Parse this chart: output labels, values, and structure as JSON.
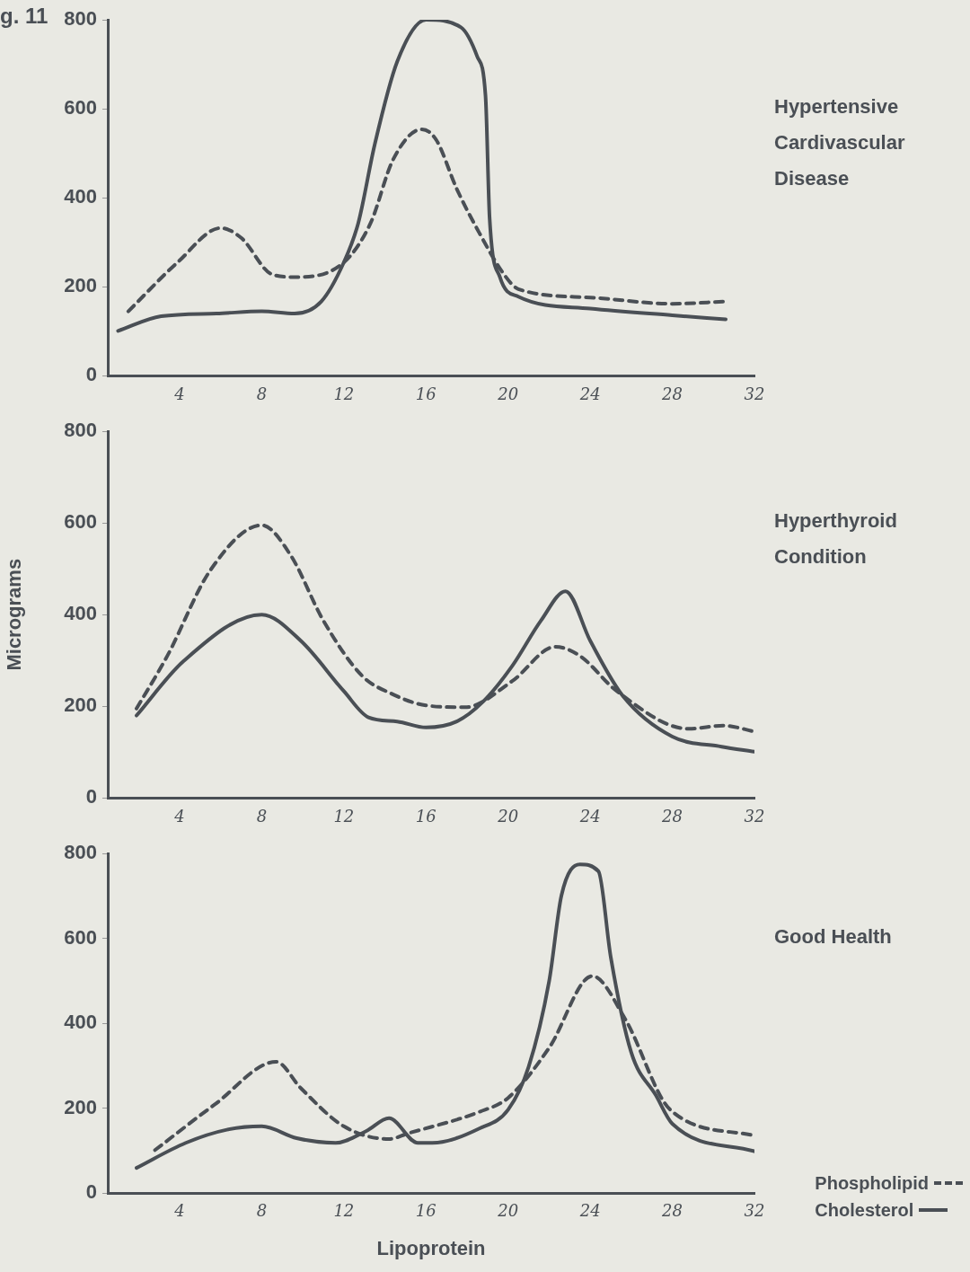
{
  "chart_data": [
    {
      "type": "line",
      "title": "g. 11",
      "annotations": [
        "Hypertensive Cardivascular Disease"
      ],
      "marker": "none",
      "xlim": [
        0.5,
        32
      ],
      "xticks": [
        4,
        8,
        12,
        16,
        20,
        24,
        28,
        32
      ],
      "ylim": [
        0,
        800
      ],
      "yticks": [
        0,
        200,
        400,
        600,
        800
      ],
      "series": [
        {
          "color": "#4a4f55",
          "line_style": "dashed",
          "x": [
            1.5,
            3.9,
            6.0,
            7.0,
            8.5,
            9.6,
            12,
            13.3,
            14.4,
            15.8,
            16.5,
            17.5,
            18.6,
            19.8,
            20.5,
            24,
            28,
            30.6
          ],
          "values": [
            145,
            255,
            332,
            310,
            228,
            222,
            255,
            343,
            486,
            554,
            530,
            420,
            321,
            228,
            195,
            176,
            162,
            167
          ]
        },
        {
          "color": "#4a4f55",
          "line_style": "solid",
          "x": [
            1.0,
            3.1,
            5.8,
            8,
            9.6,
            10.9,
            12,
            12.7,
            13.5,
            14.6,
            16,
            17.7,
            18.5,
            18.9,
            19.1,
            19.6,
            20.5,
            24,
            28,
            30.6
          ],
          "values": [
            101,
            134,
            140,
            145,
            140,
            167,
            255,
            343,
            519,
            706,
            800,
            783,
            717,
            629,
            354,
            222,
            178,
            151,
            136,
            127
          ]
        }
      ]
    },
    {
      "type": "line",
      "annotations": [
        "Hyperthyroid Condition"
      ],
      "ylabel": "Micrograms",
      "marker": "none",
      "xlim": [
        0.5,
        32
      ],
      "xticks": [
        4,
        8,
        12,
        16,
        20,
        24,
        28,
        32
      ],
      "ylim": [
        0,
        800
      ],
      "yticks": [
        0,
        200,
        400,
        600,
        800
      ],
      "series": [
        {
          "color": "#4a4f55",
          "line_style": "dashed",
          "x": [
            1.9,
            3.4,
            5.5,
            8,
            9.4,
            11.0,
            12.9,
            14.3,
            16,
            17.9,
            20.2,
            22.3,
            23.5,
            25.3,
            28.8,
            30.5,
            32
          ],
          "values": [
            195,
            310,
            497,
            595,
            530,
            387,
            266,
            228,
            202,
            198,
            255,
            330,
            310,
            233,
            151,
            158,
            145
          ]
        },
        {
          "color": "#4a4f55",
          "line_style": "solid",
          "x": [
            1.9,
            4.2,
            8,
            9.9,
            12,
            13.2,
            14.6,
            16,
            17.5,
            18.8,
            20.2,
            21.6,
            22.8,
            24,
            25.6,
            28,
            30.4,
            32
          ],
          "values": [
            180,
            299,
            400,
            343,
            233,
            176,
            167,
            154,
            167,
            211,
            288,
            387,
            451,
            343,
            222,
            134,
            112,
            101
          ]
        }
      ]
    },
    {
      "type": "line",
      "annotations": [
        "Good Health"
      ],
      "xlabel": "Lipoprotein",
      "marker": "none",
      "legend": "bottom right",
      "xlim": [
        0.5,
        32
      ],
      "xticks": [
        4,
        8,
        12,
        16,
        20,
        24,
        28,
        32
      ],
      "ylim": [
        0,
        800
      ],
      "yticks": [
        0,
        200,
        400,
        600,
        800
      ],
      "series": [
        {
          "name": "Phospholipid",
          "color": "#4a4f55",
          "line_style": "dashed",
          "x": [
            2.8,
            5.7,
            8.7,
            9.9,
            12,
            14.2,
            15.1,
            18.6,
            20,
            22,
            24.1,
            25.7,
            27.9,
            32
          ],
          "values": [
            101,
            208,
            309,
            247,
            157,
            127,
            140,
            191,
            224,
            342,
            511,
            410,
            196,
            135
          ]
        },
        {
          "name": "Cholesterol",
          "color": "#4a4f55",
          "line_style": "solid",
          "x": [
            1.9,
            4.3,
            6.3,
            8,
            9.7,
            11.6,
            13.1,
            14.2,
            15.6,
            16.3,
            18.6,
            20,
            21,
            22,
            22.6,
            23.5,
            24.4,
            25,
            26,
            27.2,
            28,
            32
          ],
          "values": [
            59,
            118,
            149,
            157,
            129,
            118,
            146,
            176,
            118,
            118,
            152,
            196,
            297,
            499,
            701,
            774,
            758,
            556,
            331,
            230,
            163,
            98
          ]
        }
      ]
    }
  ]
}
